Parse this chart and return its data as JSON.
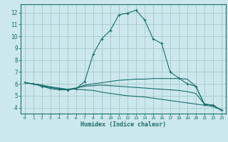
{
  "title": "",
  "xlabel": "Humidex (Indice chaleur)",
  "ylabel": "",
  "background_color": "#cce8ec",
  "grid_color": "#aacccc",
  "line_color": "#1a6e6a",
  "xlim": [
    -0.5,
    23.5
  ],
  "ylim": [
    3.5,
    12.7
  ],
  "yticks": [
    4,
    5,
    6,
    7,
    8,
    9,
    10,
    11,
    12
  ],
  "xticks": [
    0,
    1,
    2,
    3,
    4,
    5,
    6,
    7,
    8,
    9,
    10,
    11,
    12,
    13,
    14,
    15,
    16,
    17,
    18,
    19,
    20,
    21,
    22,
    23
  ],
  "series": [
    {
      "x": [
        0,
        1,
        2,
        3,
        4,
        5,
        6,
        7,
        8,
        9,
        10,
        11,
        12,
        13,
        14,
        15,
        16,
        17,
        18,
        19,
        20,
        21,
        22,
        23
      ],
      "y": [
        6.1,
        6.0,
        5.8,
        5.7,
        5.6,
        5.5,
        5.6,
        6.2,
        8.5,
        9.8,
        10.5,
        11.8,
        11.95,
        12.2,
        11.4,
        9.8,
        9.4,
        7.0,
        6.5,
        6.0,
        5.8,
        4.3,
        4.2,
        3.8
      ],
      "marker": "+"
    },
    {
      "x": [
        0,
        1,
        2,
        3,
        4,
        5,
        6,
        7,
        8,
        9,
        10,
        11,
        12,
        13,
        14,
        15,
        16,
        17,
        18,
        19,
        20,
        21,
        22,
        23
      ],
      "y": [
        6.1,
        6.0,
        5.8,
        5.6,
        5.5,
        5.5,
        5.65,
        5.9,
        6.0,
        6.1,
        6.2,
        6.3,
        6.35,
        6.4,
        6.4,
        6.45,
        6.45,
        6.45,
        6.45,
        6.4,
        5.8,
        4.3,
        4.2,
        3.8
      ],
      "marker": null
    },
    {
      "x": [
        0,
        1,
        2,
        3,
        4,
        5,
        6,
        7,
        8,
        9,
        10,
        11,
        12,
        13,
        14,
        15,
        16,
        17,
        18,
        19,
        20,
        21,
        22,
        23
      ],
      "y": [
        6.1,
        6.0,
        5.9,
        5.7,
        5.6,
        5.55,
        5.65,
        5.8,
        5.85,
        5.9,
        5.85,
        5.8,
        5.75,
        5.7,
        5.65,
        5.6,
        5.55,
        5.5,
        5.45,
        5.35,
        5.2,
        4.3,
        4.2,
        3.8
      ],
      "marker": null
    },
    {
      "x": [
        0,
        1,
        2,
        3,
        4,
        5,
        6,
        7,
        8,
        9,
        10,
        11,
        12,
        13,
        14,
        15,
        16,
        17,
        18,
        19,
        20,
        21,
        22,
        23
      ],
      "y": [
        6.1,
        6.0,
        5.9,
        5.75,
        5.65,
        5.55,
        5.55,
        5.5,
        5.45,
        5.3,
        5.2,
        5.1,
        5.0,
        4.95,
        4.9,
        4.8,
        4.7,
        4.6,
        4.5,
        4.4,
        4.3,
        4.2,
        4.1,
        3.8
      ],
      "marker": null
    }
  ],
  "font_size_xtick": 4.5,
  "font_size_ytick": 5.5,
  "font_size_xlabel": 6.0
}
